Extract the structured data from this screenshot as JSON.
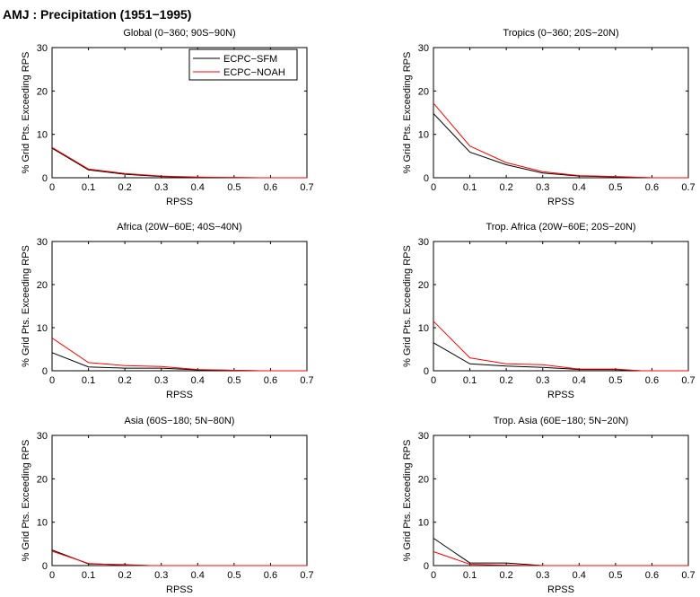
{
  "page_title": "AMJ : Precipitation (1951−1995)",
  "colors": {
    "ECPC-SFM": "#000000",
    "ECPC-NOAH": "#ff0000"
  },
  "chart_data": [
    {
      "type": "line",
      "title": "Global (0−360; 90S−90N)",
      "xlabel": "RPSS",
      "ylabel": "% Grid Pts. Exceeding RPS",
      "xlim": [
        0,
        0.7
      ],
      "ylim": [
        0,
        30
      ],
      "xticks": [
        "0",
        "0.1",
        "0.2",
        "0.3",
        "0.4",
        "0.5",
        "0.6",
        "0.7"
      ],
      "yticks": [
        "0",
        "10",
        "20",
        "30"
      ],
      "legend": "top-right",
      "series": [
        {
          "name": "ECPC−SFM",
          "color": "#000000",
          "x": [
            0,
            0.1,
            0.2,
            0.3,
            0.4,
            0.5,
            0.57,
            0.7
          ],
          "y": [
            6.8,
            1.8,
            0.8,
            0.3,
            0.1,
            0.05,
            0,
            0
          ]
        },
        {
          "name": "ECPC−NOAH",
          "color": "#ff0000",
          "x": [
            0,
            0.1,
            0.2,
            0.3,
            0.4,
            0.5,
            0.57,
            0.7
          ],
          "y": [
            7.0,
            2.0,
            1.0,
            0.4,
            0.15,
            0.05,
            0,
            0
          ]
        }
      ]
    },
    {
      "type": "line",
      "title": "Tropics (0−360; 20S−20N)",
      "xlabel": "RPSS",
      "ylabel": "% Grid Pts. Exceeding RPS",
      "xlim": [
        0,
        0.7
      ],
      "ylim": [
        0,
        30
      ],
      "xticks": [
        "0",
        "0.1",
        "0.2",
        "0.3",
        "0.4",
        "0.5",
        "0.6",
        "0.7"
      ],
      "yticks": [
        "0",
        "10",
        "20",
        "30"
      ],
      "series": [
        {
          "name": "ECPC−SFM",
          "color": "#000000",
          "x": [
            0,
            0.1,
            0.2,
            0.3,
            0.4,
            0.5,
            0.6,
            0.7
          ],
          "y": [
            14.8,
            5.9,
            3.0,
            1.1,
            0.4,
            0.2,
            0,
            0
          ]
        },
        {
          "name": "ECPC−NOAH",
          "color": "#ff0000",
          "x": [
            0,
            0.1,
            0.2,
            0.3,
            0.4,
            0.5,
            0.6,
            0.7
          ],
          "y": [
            17.2,
            7.3,
            3.5,
            1.4,
            0.5,
            0.3,
            0,
            0
          ]
        }
      ]
    },
    {
      "type": "line",
      "title": "Africa (20W−60E; 40S−40N)",
      "xlabel": "RPSS",
      "ylabel": "% Grid Pts. Exceeding RPS",
      "xlim": [
        0,
        0.7
      ],
      "ylim": [
        0,
        30
      ],
      "xticks": [
        "0",
        "0.1",
        "0.2",
        "0.3",
        "0.4",
        "0.5",
        "0.6",
        "0.7"
      ],
      "yticks": [
        "0",
        "10",
        "20",
        "30"
      ],
      "series": [
        {
          "name": "ECPC−SFM",
          "color": "#000000",
          "x": [
            0,
            0.1,
            0.2,
            0.3,
            0.4,
            0.5,
            0.57,
            0.7
          ],
          "y": [
            4.2,
            0.9,
            0.6,
            0.6,
            0.2,
            0.1,
            0,
            0
          ]
        },
        {
          "name": "ECPC−NOAH",
          "color": "#ff0000",
          "x": [
            0,
            0.1,
            0.2,
            0.3,
            0.4,
            0.5,
            0.57,
            0.7
          ],
          "y": [
            7.6,
            1.9,
            1.2,
            1.0,
            0.3,
            0.1,
            0,
            0
          ]
        }
      ]
    },
    {
      "type": "line",
      "title": "Trop. Africa (20W−60E; 20S−20N)",
      "xlabel": "RPSS",
      "ylabel": "% Grid Pts. Exceeding RPS",
      "xlim": [
        0,
        0.7
      ],
      "ylim": [
        0,
        30
      ],
      "xticks": [
        "0",
        "0.1",
        "0.2",
        "0.3",
        "0.4",
        "0.5",
        "0.6",
        "0.7"
      ],
      "yticks": [
        "0",
        "10",
        "20",
        "30"
      ],
      "series": [
        {
          "name": "ECPC−SFM",
          "color": "#000000",
          "x": [
            0,
            0.1,
            0.2,
            0.3,
            0.4,
            0.5,
            0.57,
            0.7
          ],
          "y": [
            6.5,
            1.6,
            1.1,
            0.8,
            0.3,
            0.3,
            0,
            0
          ]
        },
        {
          "name": "ECPC−NOAH",
          "color": "#ff0000",
          "x": [
            0,
            0.1,
            0.2,
            0.3,
            0.4,
            0.5,
            0.57,
            0.7
          ],
          "y": [
            11.5,
            3.0,
            1.6,
            1.4,
            0.4,
            0.4,
            0,
            0
          ]
        }
      ]
    },
    {
      "type": "line",
      "title": "Asia (60S−180; 5N−80N)",
      "xlabel": "RPSS",
      "ylabel": "% Grid Pts. Exceeding RPS",
      "xlim": [
        0,
        0.7
      ],
      "ylim": [
        0,
        30
      ],
      "xticks": [
        "0",
        "0.1",
        "0.2",
        "0.3",
        "0.4",
        "0.5",
        "0.6",
        "0.7"
      ],
      "yticks": [
        "0",
        "10",
        "20",
        "30"
      ],
      "series": [
        {
          "name": "ECPC−SFM",
          "color": "#000000",
          "x": [
            0,
            0.1,
            0.2,
            0.27,
            0.3,
            0.4,
            0.5,
            0.6,
            0.7
          ],
          "y": [
            3.6,
            0.4,
            0.2,
            0,
            0,
            0,
            0,
            0,
            0
          ]
        },
        {
          "name": "ECPC−NOAH",
          "color": "#ff0000",
          "x": [
            0,
            0.1,
            0.2,
            0.27,
            0.3,
            0.4,
            0.5,
            0.6,
            0.7
          ],
          "y": [
            3.3,
            0.5,
            0.1,
            0,
            0,
            0,
            0,
            0,
            0
          ]
        }
      ]
    },
    {
      "type": "line",
      "title": "Trop. Asia (60E−180; 5N−20N)",
      "xlabel": "RPSS",
      "ylabel": "% Grid Pts. Exceeding RPS",
      "xlim": [
        0,
        0.7
      ],
      "ylim": [
        0,
        30
      ],
      "xticks": [
        "0",
        "0.1",
        "0.2",
        "0.3",
        "0.4",
        "0.5",
        "0.6",
        "0.7"
      ],
      "yticks": [
        "0",
        "10",
        "20",
        "30"
      ],
      "series": [
        {
          "name": "ECPC−SFM",
          "color": "#000000",
          "x": [
            0,
            0.1,
            0.2,
            0.3,
            0.4,
            0.5,
            0.6,
            0.7
          ],
          "y": [
            6.3,
            0.6,
            0.6,
            0,
            0,
            0,
            0,
            0
          ]
        },
        {
          "name": "ECPC−NOAH",
          "color": "#ff0000",
          "x": [
            0,
            0.1,
            0.2,
            0.3,
            0.4,
            0.5,
            0.6,
            0.7
          ],
          "y": [
            3.2,
            0.3,
            0.1,
            0,
            0,
            0,
            0,
            0
          ]
        }
      ]
    }
  ]
}
